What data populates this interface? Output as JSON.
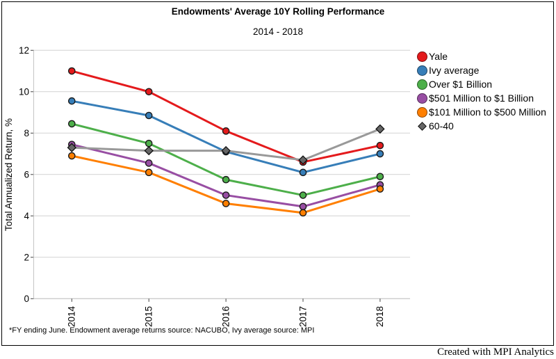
{
  "window": {
    "credit": "Created with MPI Analytics"
  },
  "chart": {
    "title": "Endowments' Average 10Y Rolling Performance",
    "subtitle": "2014 - 2018",
    "ylabel": "Total Annualized Return, %",
    "footnote": "*FY ending June. Endowment average returns source: NACUBO, Ivy average source: MPI"
  },
  "chart_data": {
    "type": "line",
    "title": "Endowments' Average 10Y Rolling Performance",
    "subtitle": "2014 - 2018",
    "xlabel": "",
    "ylabel": "Total Annualized Return, %",
    "categories": [
      "2014",
      "2015",
      "2016",
      "2017",
      "2018"
    ],
    "yticks": [
      0,
      2,
      4,
      6,
      8,
      10,
      12
    ],
    "ylim": [
      0,
      12
    ],
    "grid": "horizontal",
    "legend_position": "right",
    "colors": {
      "grid": "#d2d2d2",
      "axis": "#c4c4c4",
      "tick": "#444444",
      "text": "#000000"
    },
    "series": [
      {
        "name": "Yale",
        "color": "#e41a1c",
        "marker": "circle",
        "values": [
          11.0,
          10.0,
          8.1,
          6.6,
          7.4
        ]
      },
      {
        "name": "Ivy average",
        "color": "#377eb8",
        "marker": "circle",
        "values": [
          9.55,
          8.85,
          7.1,
          6.1,
          7.0
        ]
      },
      {
        "name": "Over $1 Billion",
        "color": "#4daf4a",
        "marker": "circle",
        "values": [
          8.45,
          7.5,
          5.75,
          5.0,
          5.9
        ]
      },
      {
        "name": "$501 Million to $1 Billion",
        "color": "#984ea3",
        "marker": "circle",
        "values": [
          7.45,
          6.55,
          5.0,
          4.45,
          5.5
        ]
      },
      {
        "name": "$101 Million to $500 Million",
        "color": "#ff7f00",
        "marker": "circle",
        "values": [
          6.9,
          6.1,
          4.6,
          4.15,
          5.3
        ]
      },
      {
        "name": "60-40",
        "color": "#999999",
        "marker": "diamond",
        "marker_color": "#666666",
        "values": [
          7.3,
          7.15,
          7.15,
          6.7,
          8.2
        ]
      }
    ]
  }
}
